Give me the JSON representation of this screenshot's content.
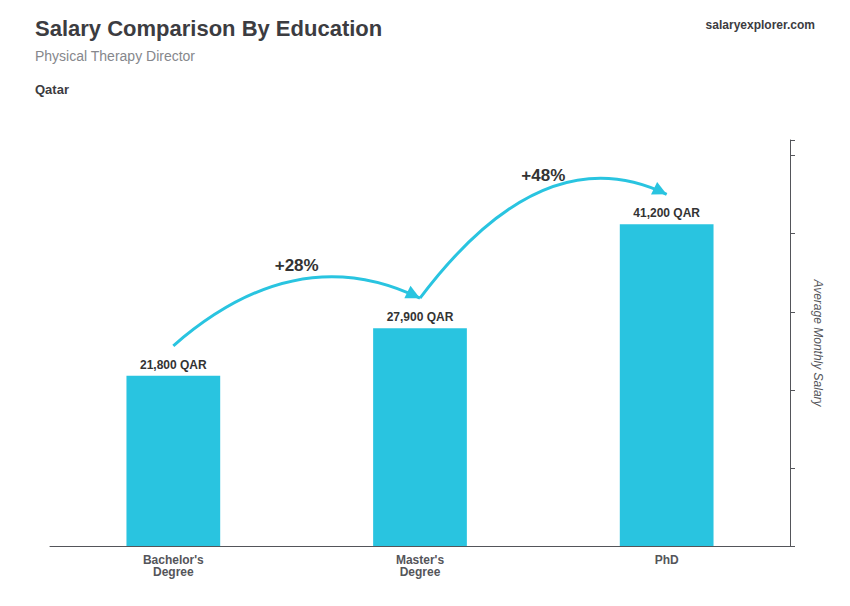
{
  "chart_data": {
    "type": "bar",
    "title": "Salary Comparison By Education",
    "subtitle": "Physical Therapy Director",
    "ylabel": "Average Monthly Salary",
    "categories": [
      "Bachelor's\nDegree",
      "Master's\nDegree",
      "PhD"
    ],
    "values": [
      21800,
      27900,
      41200
    ],
    "value_labels": [
      "21,800 QAR",
      "27,900 QAR",
      "41,200 QAR"
    ],
    "data_labels": true,
    "color": "#29c4e0",
    "ylim": [
      0,
      52000
    ],
    "yticks": [
      0,
      10000,
      20000,
      30000,
      40000,
      50000
    ],
    "tick_labels": "x",
    "grid": false,
    "annotations": [
      {
        "text": "Qatar"
      },
      {
        "text": "salaryexplorer.com"
      },
      {
        "text": "+28%",
        "from": "Bachelor's\nDegree",
        "to": "Master's\nDegree"
      },
      {
        "text": "+48%",
        "from": "Master's\nDegree",
        "to": "PhD"
      }
    ]
  }
}
